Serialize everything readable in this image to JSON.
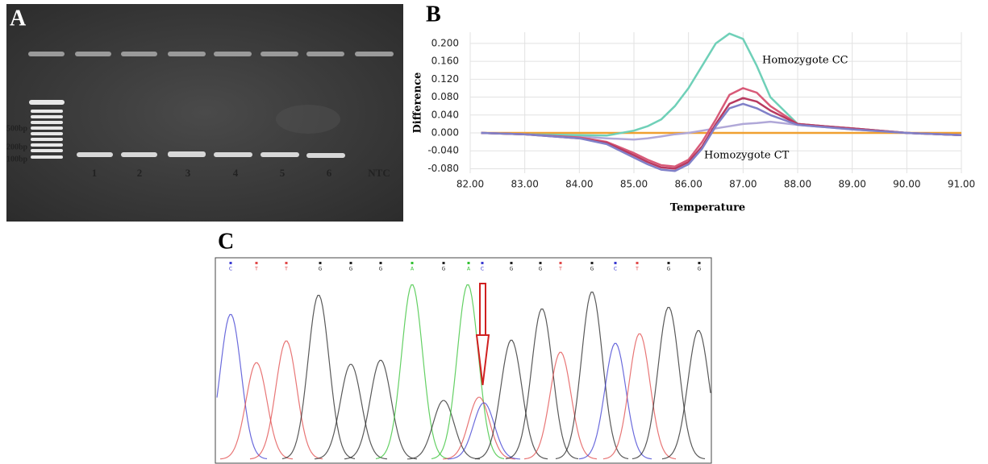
{
  "panel_a": {
    "label": "A",
    "ladder_labels": [
      "500bp",
      "200bp",
      "100bp"
    ],
    "lanes": [
      "1",
      "2",
      "3",
      "4",
      "5",
      "6",
      "NTC"
    ]
  },
  "chart_data": {
    "type": "line",
    "panel_label": "B",
    "xlabel": "Temperature",
    "ylabel": "Difference",
    "x": [
      82.2,
      83,
      84,
      84.5,
      85,
      85.25,
      85.5,
      85.75,
      86,
      86.25,
      86.5,
      86.75,
      87,
      87.25,
      87.5,
      88,
      88.5,
      89,
      90,
      91
    ],
    "series": [
      {
        "color": "#f0a030",
        "values": [
          0,
          0,
          0,
          0,
          0,
          0,
          0,
          0,
          0,
          0,
          0,
          0,
          0,
          0,
          0,
          0,
          0,
          0,
          0,
          0
        ]
      },
      {
        "color": "#b0a8d8",
        "values": [
          0,
          -0.003,
          -0.008,
          -0.012,
          -0.015,
          -0.012,
          -0.008,
          -0.003,
          0,
          0.005,
          0.01,
          0.015,
          0.02,
          0.022,
          0.025,
          0.018,
          0.013,
          0.008,
          0,
          -0.005
        ]
      },
      {
        "color": "#6fd0b8",
        "values": [
          0,
          -0.003,
          -0.005,
          -0.006,
          0.005,
          0.015,
          0.03,
          0.06,
          0.1,
          0.15,
          0.2,
          0.222,
          0.21,
          0.15,
          0.08,
          0.02,
          0.015,
          0.01,
          0,
          -0.005
        ]
      },
      {
        "color": "#d85a78",
        "values": [
          0,
          -0.003,
          -0.01,
          -0.02,
          -0.045,
          -0.06,
          -0.072,
          -0.075,
          -0.06,
          -0.02,
          0.03,
          0.085,
          0.1,
          0.09,
          0.06,
          0.02,
          0.015,
          0.01,
          0,
          -0.005
        ]
      },
      {
        "color": "#b83a60",
        "values": [
          0,
          -0.003,
          -0.012,
          -0.022,
          -0.05,
          -0.065,
          -0.077,
          -0.08,
          -0.065,
          -0.03,
          0.02,
          0.065,
          0.078,
          0.07,
          0.05,
          0.02,
          0.015,
          0.01,
          0,
          -0.005
        ]
      },
      {
        "color": "#8080c8",
        "values": [
          0,
          -0.003,
          -0.012,
          -0.025,
          -0.055,
          -0.07,
          -0.082,
          -0.085,
          -0.07,
          -0.035,
          0.015,
          0.055,
          0.065,
          0.055,
          0.04,
          0.018,
          0.013,
          0.008,
          0,
          -0.005
        ]
      }
    ],
    "xlim": [
      82,
      91
    ],
    "xticks": [
      {
        "value": 82,
        "label": "82.00"
      },
      {
        "value": 83,
        "label": "83.00"
      },
      {
        "value": 84,
        "label": "84.00"
      },
      {
        "value": 85,
        "label": "85.00"
      },
      {
        "value": 86,
        "label": "86.00"
      },
      {
        "value": 87,
        "label": "87.00"
      },
      {
        "value": 88,
        "label": "88.00"
      },
      {
        "value": 89,
        "label": "89.00"
      },
      {
        "value": 90,
        "label": "90.00"
      },
      {
        "value": 91,
        "label": "91.00"
      }
    ],
    "ylim": [
      -0.09,
      0.225
    ],
    "yticks": [
      {
        "value": -0.08,
        "label": "-0.080"
      },
      {
        "value": -0.04,
        "label": "-0.040"
      },
      {
        "value": 0,
        "label": "0.000"
      },
      {
        "value": 0.04,
        "label": "0.040"
      },
      {
        "value": 0.08,
        "label": "0.080"
      },
      {
        "value": 0.12,
        "label": "0.120"
      },
      {
        "value": 0.16,
        "label": "0.160"
      },
      {
        "value": 0.2,
        "label": "0.200"
      }
    ],
    "grid": true,
    "annotations": [
      "Homozygote CC",
      "Homozygote CT"
    ]
  },
  "panel_c": {
    "label": "C",
    "bases": [
      "C",
      "T",
      "T",
      "G",
      "G",
      "G",
      "A",
      "G",
      "A",
      "C",
      "G",
      "G",
      "T",
      "G",
      "C",
      "T",
      "G",
      "G"
    ]
  }
}
